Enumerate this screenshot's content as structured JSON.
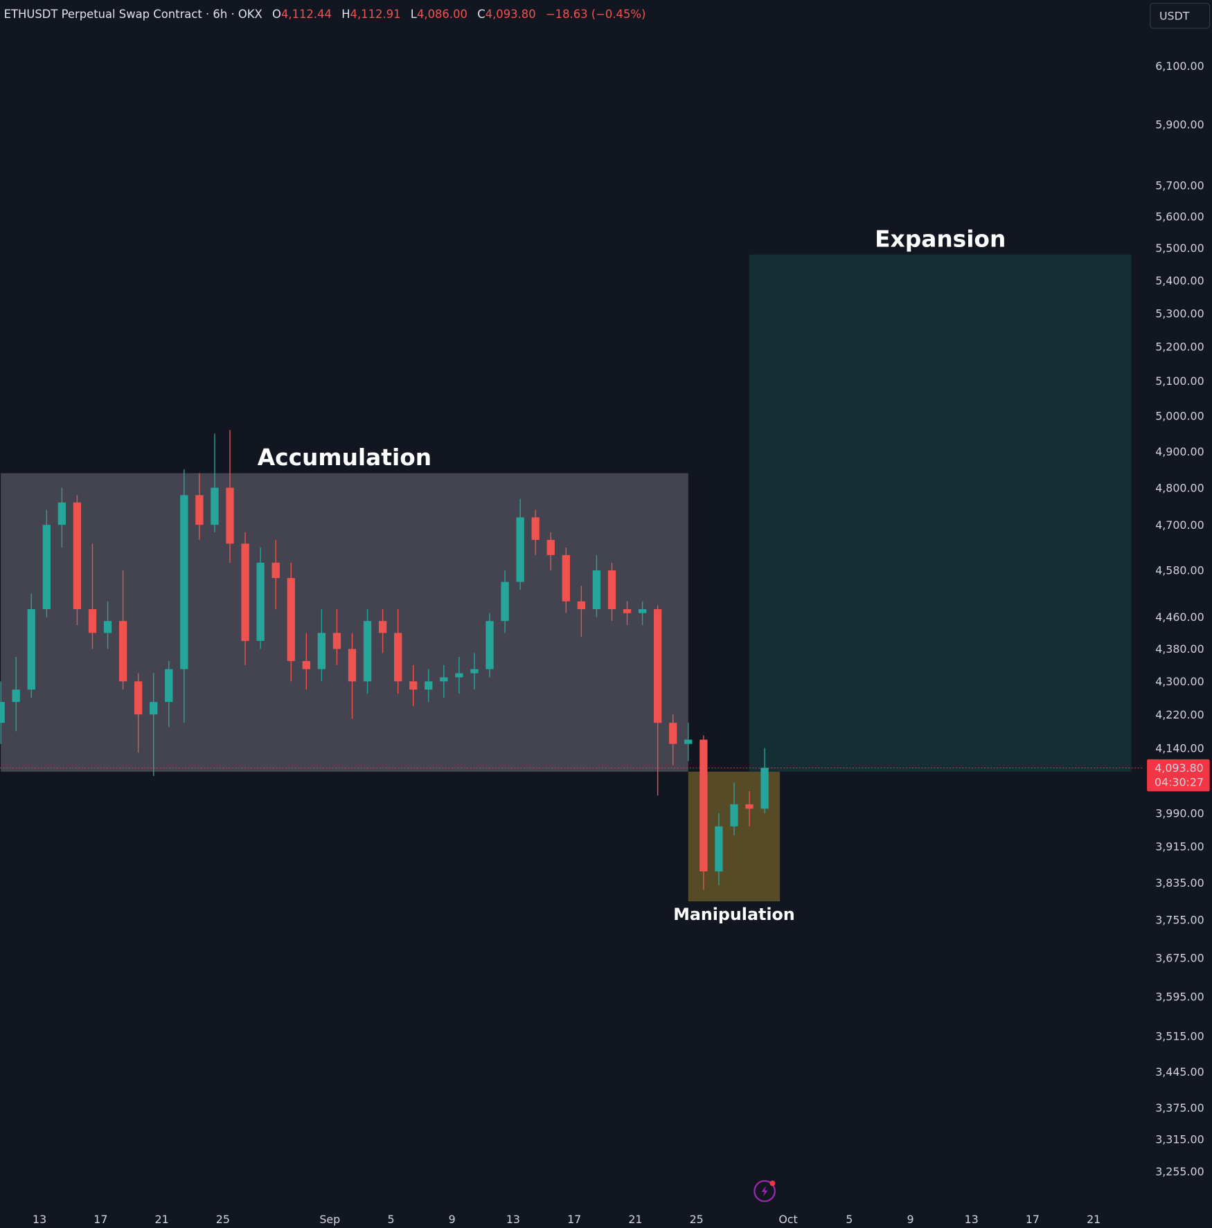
{
  "header": {
    "symbol": "ETHUSDT Perpetual Swap Contract · 6h · OKX",
    "o_label": "O",
    "o": "4,112.44",
    "h_label": "H",
    "h": "4,112.91",
    "l_label": "L",
    "l": "4,086.00",
    "c_label": "C",
    "c": "4,093.80",
    "change": "−18.63 (−0.45%)"
  },
  "currency_button": "USDT",
  "last_price": {
    "price": "4,093.80",
    "countdown": "04:30:27",
    "value": 4093.8
  },
  "colors": {
    "background": "#121620",
    "up": "#26a69a",
    "down": "#ef5350",
    "accumulation": "#43444f",
    "expansion": "#132f33",
    "manipulation": "#574a26",
    "price_label": "#f23645"
  },
  "chart_data": {
    "type": "candlestick",
    "y_scale": "log",
    "ylim": [
      3200,
      6200
    ],
    "grid": false,
    "y_ticks": [
      "6,100.00",
      "5,900.00",
      "5,700.00",
      "5,600.00",
      "5,500.00",
      "5,400.00",
      "5,300.00",
      "5,200.00",
      "5,100.00",
      "5,000.00",
      "4,900.00",
      "4,800.00",
      "4,700.00",
      "4,580.00",
      "4,460.00",
      "4,380.00",
      "4,300.00",
      "4,220.00",
      "4,140.00",
      "3,990.00",
      "3,915.00",
      "3,835.00",
      "3,755.00",
      "3,675.00",
      "3,595.00",
      "3,515.00",
      "3,445.00",
      "3,375.00",
      "3,315.00",
      "3,255.00"
    ],
    "x_ticks": [
      {
        "label": "13",
        "date": "2025-08-13"
      },
      {
        "label": "17",
        "date": "2025-08-17"
      },
      {
        "label": "21",
        "date": "2025-08-21"
      },
      {
        "label": "25",
        "date": "2025-08-25"
      },
      {
        "label": "Sep",
        "date": "2025-09-01"
      },
      {
        "label": "5",
        "date": "2025-09-05"
      },
      {
        "label": "9",
        "date": "2025-09-09"
      },
      {
        "label": "13",
        "date": "2025-09-13"
      },
      {
        "label": "17",
        "date": "2025-09-17"
      },
      {
        "label": "21",
        "date": "2025-09-21"
      },
      {
        "label": "25",
        "date": "2025-09-25"
      },
      {
        "label": "Oct",
        "date": "2025-10-01"
      },
      {
        "label": "5",
        "date": "2025-10-05"
      },
      {
        "label": "9",
        "date": "2025-10-09"
      },
      {
        "label": "13",
        "date": "2025-10-13"
      },
      {
        "label": "17",
        "date": "2025-10-17"
      },
      {
        "label": "21",
        "date": "2025-10-21"
      }
    ],
    "candles": [
      [
        "2025-08-10",
        4200,
        4300,
        4150,
        4250
      ],
      [
        "2025-08-11",
        4250,
        4360,
        4180,
        4280
      ],
      [
        "2025-08-12",
        4280,
        4520,
        4260,
        4480
      ],
      [
        "2025-08-13",
        4480,
        4740,
        4460,
        4700
      ],
      [
        "2025-08-14",
        4700,
        4800,
        4640,
        4760
      ],
      [
        "2025-08-15",
        4760,
        4780,
        4440,
        4480
      ],
      [
        "2025-08-16",
        4480,
        4650,
        4380,
        4420
      ],
      [
        "2025-08-17",
        4420,
        4500,
        4380,
        4450
      ],
      [
        "2025-08-18",
        4450,
        4580,
        4280,
        4300
      ],
      [
        "2025-08-19",
        4300,
        4320,
        4130,
        4220
      ],
      [
        "2025-08-20",
        4220,
        4320,
        4075,
        4250
      ],
      [
        "2025-08-21",
        4250,
        4350,
        4190,
        4330
      ],
      [
        "2025-08-22",
        4330,
        4850,
        4200,
        4780
      ],
      [
        "2025-08-23",
        4780,
        4840,
        4660,
        4700
      ],
      [
        "2025-08-24",
        4700,
        4950,
        4680,
        4800
      ],
      [
        "2025-08-25",
        4800,
        4960,
        4600,
        4650
      ],
      [
        "2025-08-26",
        4650,
        4680,
        4340,
        4400
      ],
      [
        "2025-08-27",
        4400,
        4640,
        4380,
        4600
      ],
      [
        "2025-08-28",
        4600,
        4660,
        4480,
        4560
      ],
      [
        "2025-08-29",
        4560,
        4600,
        4300,
        4350
      ],
      [
        "2025-08-30",
        4350,
        4420,
        4280,
        4330
      ],
      [
        "2025-08-31",
        4330,
        4480,
        4300,
        4420
      ],
      [
        "2025-09-01",
        4420,
        4480,
        4340,
        4380
      ],
      [
        "2025-09-02",
        4380,
        4420,
        4210,
        4300
      ],
      [
        "2025-09-03",
        4300,
        4480,
        4270,
        4450
      ],
      [
        "2025-09-04",
        4450,
        4480,
        4370,
        4420
      ],
      [
        "2025-09-05",
        4420,
        4480,
        4270,
        4300
      ],
      [
        "2025-09-06",
        4300,
        4340,
        4240,
        4280
      ],
      [
        "2025-09-07",
        4280,
        4330,
        4250,
        4300
      ],
      [
        "2025-09-08",
        4300,
        4340,
        4260,
        4310
      ],
      [
        "2025-09-09",
        4310,
        4360,
        4270,
        4320
      ],
      [
        "2025-09-10",
        4320,
        4370,
        4280,
        4330
      ],
      [
        "2025-09-11",
        4330,
        4470,
        4310,
        4450
      ],
      [
        "2025-09-12",
        4450,
        4580,
        4420,
        4550
      ],
      [
        "2025-09-13",
        4550,
        4770,
        4530,
        4720
      ],
      [
        "2025-09-14",
        4720,
        4740,
        4620,
        4660
      ],
      [
        "2025-09-15",
        4660,
        4680,
        4580,
        4620
      ],
      [
        "2025-09-16",
        4620,
        4640,
        4470,
        4500
      ],
      [
        "2025-09-17",
        4500,
        4540,
        4410,
        4480
      ],
      [
        "2025-09-18",
        4480,
        4620,
        4460,
        4580
      ],
      [
        "2025-09-19",
        4580,
        4600,
        4450,
        4480
      ],
      [
        "2025-09-20",
        4480,
        4500,
        4440,
        4470
      ],
      [
        "2025-09-21",
        4470,
        4500,
        4440,
        4480
      ],
      [
        "2025-09-22",
        4480,
        4490,
        4030,
        4200
      ],
      [
        "2025-09-23",
        4200,
        4220,
        4100,
        4150
      ],
      [
        "2025-09-24",
        4150,
        4200,
        4110,
        4160
      ],
      [
        "2025-09-25",
        4160,
        4170,
        3820,
        3860
      ],
      [
        "2025-09-26",
        3860,
        3990,
        3830,
        3960
      ],
      [
        "2025-09-27",
        3960,
        4060,
        3940,
        4010
      ],
      [
        "2025-09-28",
        4010,
        4040,
        3960,
        4000
      ],
      [
        "2025-09-29",
        4000,
        4140,
        3990,
        4094
      ]
    ],
    "zones": [
      {
        "name": "accumulation",
        "label": "Accumulation",
        "start": "2025-08-10",
        "end": "2025-09-24",
        "top": 4840,
        "bottom": 4085
      },
      {
        "name": "manipulation",
        "label": "Manipulation",
        "start": "2025-09-24",
        "end": "2025-09-30",
        "top": 4085,
        "bottom": 3795
      },
      {
        "name": "expansion",
        "label": "Expansion",
        "start": "2025-09-28",
        "end": "2025-10-23",
        "top": 5480,
        "bottom": 4085
      }
    ]
  }
}
